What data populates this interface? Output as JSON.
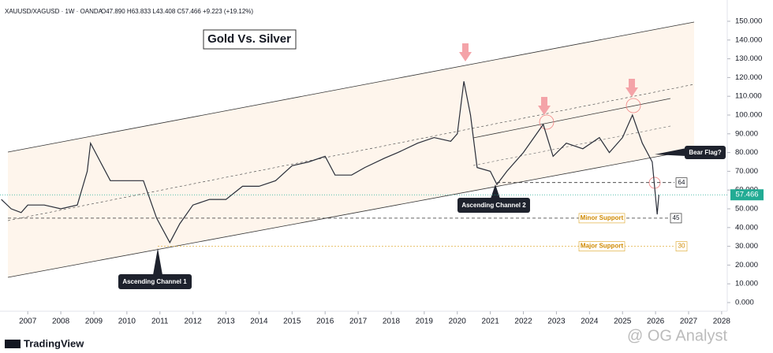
{
  "chart_data": {
    "type": "line",
    "title": "Gold Vs. Silver",
    "legend_line": "XAUUSD/XAGUSD · 1W · OANDA",
    "ohlc": "O47.890 H63.833 L43.408 C57.466 +9.223 (+19.12%)",
    "series": [
      {
        "name": "XAUUSD/XAGUSD",
        "color": "#2a2e39",
        "x": [
          2006.2,
          2006.5,
          2006.8,
          2007.0,
          2007.5,
          2008.0,
          2008.5,
          2008.8,
          2008.9,
          2009.2,
          2009.5,
          2010.0,
          2010.5,
          2010.9,
          2011.3,
          2011.6,
          2012.0,
          2012.5,
          2013.0,
          2013.5,
          2014.0,
          2014.5,
          2015.0,
          2015.5,
          2016.0,
          2016.3,
          2016.8,
          2017.2,
          2017.8,
          2018.2,
          2018.8,
          2019.3,
          2019.8,
          2020.0,
          2020.2,
          2020.4,
          2020.6,
          2021.0,
          2021.2,
          2021.5,
          2022.0,
          2022.6,
          2022.9,
          2023.3,
          2023.8,
          2024.3,
          2024.6,
          2025.0,
          2025.3,
          2025.6,
          2025.9,
          2026.05,
          2026.1
        ],
        "values": [
          55,
          50,
          48,
          52,
          52,
          50,
          52,
          70,
          85,
          75,
          65,
          65,
          65,
          45,
          32,
          42,
          52,
          55,
          55,
          62,
          62,
          65,
          73,
          75,
          78,
          68,
          68,
          72,
          77,
          80,
          85,
          88,
          86,
          90,
          118,
          100,
          72,
          70,
          63,
          70,
          80,
          95,
          78,
          85,
          82,
          88,
          80,
          88,
          100,
          85,
          75,
          47,
          57.466
        ]
      }
    ],
    "last": 57.466,
    "last_color": "#22ab94",
    "levels": [
      {
        "value": 64
      },
      {
        "value": 45,
        "name": "Minor Support"
      },
      {
        "value": 30,
        "name": "Major Support"
      }
    ],
    "annotations": [
      "Bear Flag?",
      "Ascending Channel 2",
      "Ascending Channel 1"
    ],
    "xlim": [
      2006.16,
      2028.17
    ],
    "xticks": [
      2007,
      2008,
      2009,
      2010,
      2011,
      2012,
      2013,
      2014,
      2015,
      2016,
      2017,
      2018,
      2019,
      2020,
      2021,
      2022,
      2023,
      2024,
      2025,
      2026,
      2027,
      2028
    ],
    "ylim": [
      0,
      150
    ],
    "yticks": [
      {
        "value": 0,
        "label": "0.000"
      },
      {
        "value": 10,
        "label": "10.000"
      },
      {
        "value": 20,
        "label": "20.000"
      },
      {
        "value": 30,
        "label": "30.000"
      },
      {
        "value": 40,
        "label": "40.000"
      },
      {
        "value": 50,
        "label": "50.000"
      },
      {
        "value": 60,
        "label": "60.000"
      },
      {
        "value": 70,
        "label": "70.000"
      },
      {
        "value": 80,
        "label": "80.000"
      },
      {
        "value": 90,
        "label": "90.000"
      },
      {
        "value": 100,
        "label": "100.000"
      },
      {
        "value": 110,
        "label": "110.000"
      },
      {
        "value": 120,
        "label": "120.000"
      },
      {
        "value": 130,
        "label": "130.000"
      },
      {
        "value": 140,
        "label": "140.000"
      },
      {
        "value": 150,
        "label": "150.000"
      }
    ]
  },
  "branding": "TradingView",
  "watermark": "@ OG Analyst"
}
